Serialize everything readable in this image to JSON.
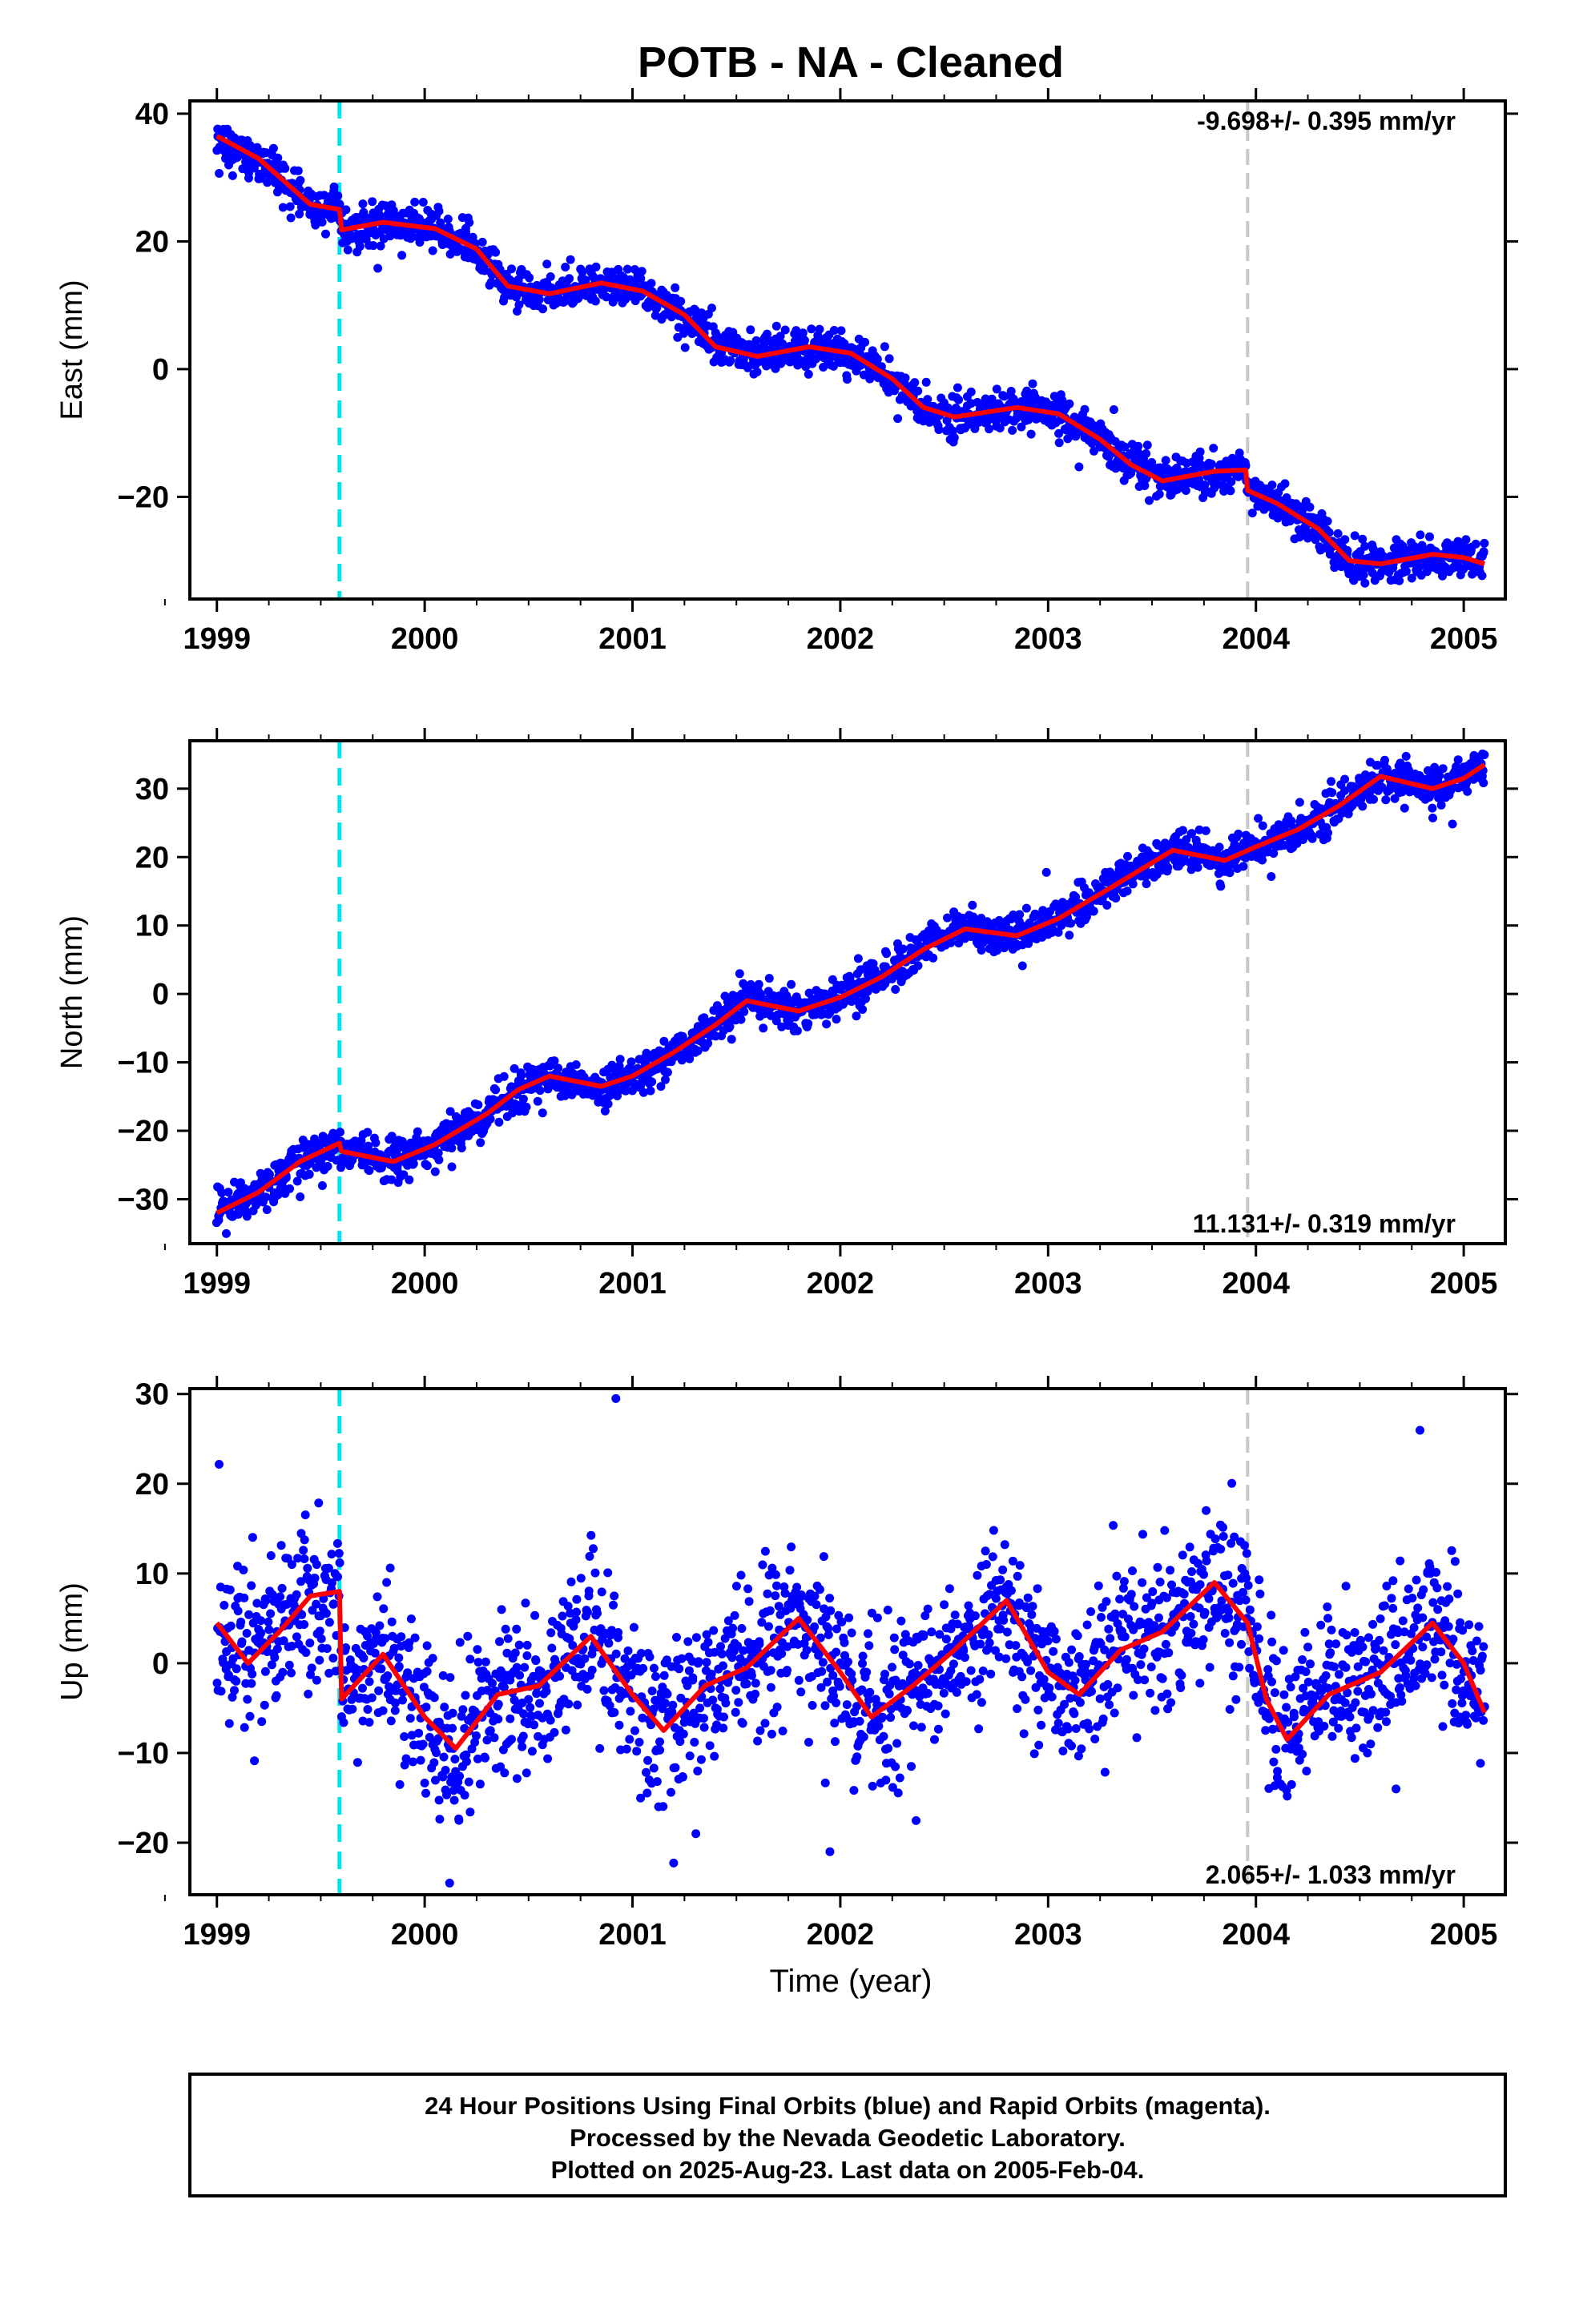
{
  "title": "POTB  - NA - Cleaned",
  "xlabel": "Time (year)",
  "footer": [
    "24 Hour Positions Using Final Orbits (blue) and Rapid Orbits (magenta).",
    "Processed by the Nevada Geodetic Laboratory.",
    "Plotted on 2025-Aug-23. Last data on 2005-Feb-04."
  ],
  "colors": {
    "points": "#0000ff",
    "model": "#ff0000",
    "equipment_change": "#00e5ee",
    "other_event": "#c8c8c8"
  },
  "chart_data": [
    {
      "type": "scatter",
      "component": "East",
      "ylabel": "East (mm)",
      "rate_label": "-9.698+/- 0.395 mm/yr",
      "rate_position": "top-right",
      "xlim": [
        1998.87,
        2005.2
      ],
      "ylim": [
        -36,
        42
      ],
      "xticks": [
        1999,
        2000,
        2001,
        2002,
        2003,
        2004,
        2005
      ],
      "yticks": [
        -20,
        0,
        20,
        40
      ],
      "event_lines": [
        {
          "x": 1999.59,
          "kind": "equipment_change"
        },
        {
          "x": 2003.96,
          "kind": "other_event"
        }
      ],
      "model_trend": [
        [
          1999.0,
          36.5
        ],
        [
          1999.2,
          33.0
        ],
        [
          1999.45,
          25.8
        ],
        [
          1999.59,
          25.0
        ],
        [
          1999.6,
          21.8
        ],
        [
          1999.8,
          23.0
        ],
        [
          2000.05,
          22.0
        ],
        [
          2000.25,
          18.8
        ],
        [
          2000.4,
          13.0
        ],
        [
          2000.6,
          11.8
        ],
        [
          2000.85,
          13.5
        ],
        [
          2001.05,
          12.2
        ],
        [
          2001.25,
          8.5
        ],
        [
          2001.4,
          3.5
        ],
        [
          2001.6,
          2.0
        ],
        [
          2001.85,
          3.5
        ],
        [
          2002.05,
          2.5
        ],
        [
          2002.25,
          -1.5
        ],
        [
          2002.4,
          -6.0
        ],
        [
          2002.55,
          -7.5
        ],
        [
          2002.85,
          -6.0
        ],
        [
          2003.05,
          -7.0
        ],
        [
          2003.25,
          -11.0
        ],
        [
          2003.4,
          -15.0
        ],
        [
          2003.55,
          -17.5
        ],
        [
          2003.8,
          -16.0
        ],
        [
          2003.95,
          -15.8
        ],
        [
          2003.96,
          -19.0
        ],
        [
          2004.1,
          -21.0
        ],
        [
          2004.3,
          -25.0
        ],
        [
          2004.45,
          -30.0
        ],
        [
          2004.6,
          -30.5
        ],
        [
          2004.85,
          -29.0
        ],
        [
          2005.0,
          -29.5
        ],
        [
          2005.1,
          -30.5
        ]
      ],
      "noise_mm": 1.5,
      "outlier_mm": 3.5
    },
    {
      "type": "scatter",
      "component": "North",
      "ylabel": "North (mm)",
      "rate_label": "11.131+/- 0.319 mm/yr",
      "rate_position": "bottom-right",
      "xlim": [
        1998.87,
        2005.2
      ],
      "ylim": [
        -36.5,
        37
      ],
      "xticks": [
        1999,
        2000,
        2001,
        2002,
        2003,
        2004,
        2005
      ],
      "yticks": [
        -30,
        -20,
        -10,
        0,
        10,
        20,
        30
      ],
      "event_lines": [
        {
          "x": 1999.59,
          "kind": "equipment_change"
        },
        {
          "x": 2003.96,
          "kind": "other_event"
        }
      ],
      "model_trend": [
        [
          1999.0,
          -32.0
        ],
        [
          1999.2,
          -29.0
        ],
        [
          1999.4,
          -24.5
        ],
        [
          1999.59,
          -21.8
        ],
        [
          1999.6,
          -23.0
        ],
        [
          1999.85,
          -24.5
        ],
        [
          2000.05,
          -22.0
        ],
        [
          2000.3,
          -17.5
        ],
        [
          2000.45,
          -14.0
        ],
        [
          2000.6,
          -12.0
        ],
        [
          2000.85,
          -13.5
        ],
        [
          2001.0,
          -12.0
        ],
        [
          2001.2,
          -8.5
        ],
        [
          2001.4,
          -4.5
        ],
        [
          2001.55,
          -1.0
        ],
        [
          2001.8,
          -2.5
        ],
        [
          2002.0,
          -0.5
        ],
        [
          2002.2,
          2.5
        ],
        [
          2002.4,
          6.5
        ],
        [
          2002.6,
          9.5
        ],
        [
          2002.85,
          8.5
        ],
        [
          2003.05,
          11.0
        ],
        [
          2003.3,
          15.5
        ],
        [
          2003.6,
          21.0
        ],
        [
          2003.85,
          19.5
        ],
        [
          2004.0,
          21.5
        ],
        [
          2004.2,
          24.0
        ],
        [
          2004.4,
          27.5
        ],
        [
          2004.6,
          31.8
        ],
        [
          2004.85,
          30.0
        ],
        [
          2005.0,
          31.5
        ],
        [
          2005.1,
          33.5
        ]
      ],
      "noise_mm": 1.4,
      "outlier_mm": 3.5
    },
    {
      "type": "scatter",
      "component": "Up",
      "ylabel": "Up (mm)",
      "rate_label": "2.065+/- 1.033 mm/yr",
      "rate_position": "bottom-right",
      "xlim": [
        1998.87,
        2005.2
      ],
      "ylim": [
        -25.8,
        30.6
      ],
      "xticks": [
        1999,
        2000,
        2001,
        2002,
        2003,
        2004,
        2005
      ],
      "yticks": [
        -20,
        -10,
        0,
        10,
        20,
        30
      ],
      "event_lines": [
        {
          "x": 1999.59,
          "kind": "equipment_change"
        },
        {
          "x": 2003.96,
          "kind": "other_event"
        }
      ],
      "model_trend": [
        [
          1999.0,
          4.5
        ],
        [
          1999.15,
          0.0
        ],
        [
          1999.3,
          3.5
        ],
        [
          1999.45,
          7.5
        ],
        [
          1999.59,
          8.0
        ],
        [
          1999.6,
          -4.0
        ],
        [
          1999.8,
          1.0
        ],
        [
          2000.0,
          -6.0
        ],
        [
          2000.15,
          -9.5
        ],
        [
          2000.35,
          -3.5
        ],
        [
          2000.55,
          -2.5
        ],
        [
          2000.8,
          3.0
        ],
        [
          2001.0,
          -3.5
        ],
        [
          2001.15,
          -7.5
        ],
        [
          2001.35,
          -2.5
        ],
        [
          2001.55,
          -0.5
        ],
        [
          2001.8,
          5.0
        ],
        [
          2002.0,
          -1.0
        ],
        [
          2002.15,
          -6.0
        ],
        [
          2002.35,
          -2.5
        ],
        [
          2002.55,
          1.5
        ],
        [
          2002.8,
          7.0
        ],
        [
          2003.0,
          -1.0
        ],
        [
          2003.15,
          -3.5
        ],
        [
          2003.35,
          1.5
        ],
        [
          2003.55,
          3.5
        ],
        [
          2003.8,
          9.0
        ],
        [
          2003.96,
          4.5
        ],
        [
          2004.05,
          -4.0
        ],
        [
          2004.15,
          -8.5
        ],
        [
          2004.35,
          -3.5
        ],
        [
          2004.6,
          -1.0
        ],
        [
          2004.85,
          4.5
        ],
        [
          2005.0,
          0.0
        ],
        [
          2005.1,
          -5.5
        ]
      ],
      "noise_mm": 4.2,
      "outlier_mm": 11.0,
      "extreme_points": [
        [
          2000.92,
          29.5
        ],
        [
          2001.95,
          -21.0
        ],
        [
          2000.12,
          -24.5
        ]
      ]
    }
  ]
}
